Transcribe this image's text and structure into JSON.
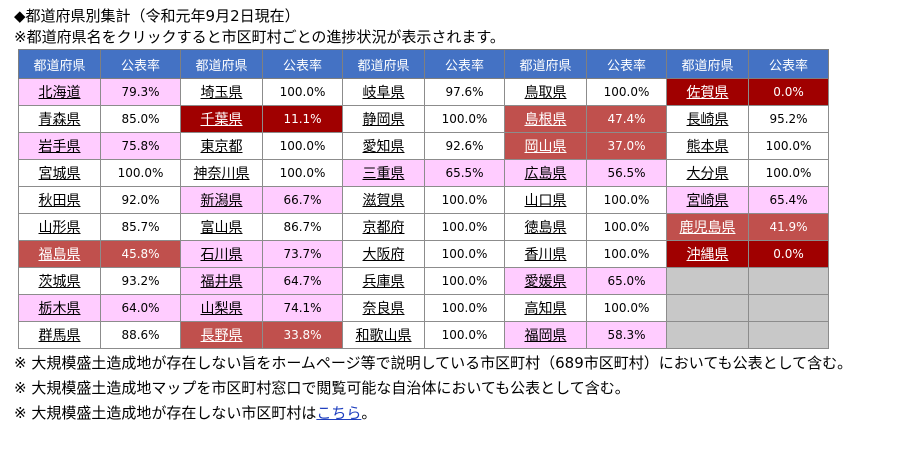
{
  "title": "◆都道府県別集計（令和元年9月2日現在）",
  "note_top": "※都道府県名をクリックすると市区町村ごとの進捗状況が表示されます。",
  "headers": [
    "都道府県",
    "公表率",
    "都道府県",
    "公表率",
    "都道府県",
    "公表率",
    "都道府県",
    "公表率",
    "都道府県",
    "公表率"
  ],
  "colors": {
    "white": "#ffffff",
    "pink": "#ffccff",
    "salmon": "#c0504d",
    "darkred": "#a00000",
    "empty": "#c8c8c8",
    "header": "#4472c4"
  },
  "rows": [
    [
      [
        "北海道",
        "79.3%",
        "pink"
      ],
      [
        "埼玉県",
        "100.0%",
        "white"
      ],
      [
        "岐阜県",
        "97.6%",
        "white"
      ],
      [
        "鳥取県",
        "100.0%",
        "white"
      ],
      [
        "佐賀県",
        "0.0%",
        "darkred"
      ]
    ],
    [
      [
        "青森県",
        "85.0%",
        "white"
      ],
      [
        "千葉県",
        "11.1%",
        "darkred"
      ],
      [
        "静岡県",
        "100.0%",
        "white"
      ],
      [
        "島根県",
        "47.4%",
        "salmon"
      ],
      [
        "長崎県",
        "95.2%",
        "white"
      ]
    ],
    [
      [
        "岩手県",
        "75.8%",
        "pink"
      ],
      [
        "東京都",
        "100.0%",
        "white"
      ],
      [
        "愛知県",
        "92.6%",
        "white"
      ],
      [
        "岡山県",
        "37.0%",
        "salmon"
      ],
      [
        "熊本県",
        "100.0%",
        "white"
      ]
    ],
    [
      [
        "宮城県",
        "100.0%",
        "white"
      ],
      [
        "神奈川県",
        "100.0%",
        "white"
      ],
      [
        "三重県",
        "65.5%",
        "pink"
      ],
      [
        "広島県",
        "56.5%",
        "pink"
      ],
      [
        "大分県",
        "100.0%",
        "white"
      ]
    ],
    [
      [
        "秋田県",
        "92.0%",
        "white"
      ],
      [
        "新潟県",
        "66.7%",
        "pink"
      ],
      [
        "滋賀県",
        "100.0%",
        "white"
      ],
      [
        "山口県",
        "100.0%",
        "white"
      ],
      [
        "宮崎県",
        "65.4%",
        "pink"
      ]
    ],
    [
      [
        "山形県",
        "85.7%",
        "white"
      ],
      [
        "富山県",
        "86.7%",
        "white"
      ],
      [
        "京都府",
        "100.0%",
        "white"
      ],
      [
        "徳島県",
        "100.0%",
        "white"
      ],
      [
        "鹿児島県",
        "41.9%",
        "salmon"
      ]
    ],
    [
      [
        "福島県",
        "45.8%",
        "salmon"
      ],
      [
        "石川県",
        "73.7%",
        "pink"
      ],
      [
        "大阪府",
        "100.0%",
        "white"
      ],
      [
        "香川県",
        "100.0%",
        "white"
      ],
      [
        "沖縄県",
        "0.0%",
        "darkred"
      ]
    ],
    [
      [
        "茨城県",
        "93.2%",
        "white"
      ],
      [
        "福井県",
        "64.7%",
        "pink"
      ],
      [
        "兵庫県",
        "100.0%",
        "white"
      ],
      [
        "愛媛県",
        "65.0%",
        "pink"
      ],
      [
        "",
        "",
        "empty"
      ]
    ],
    [
      [
        "栃木県",
        "64.0%",
        "pink"
      ],
      [
        "山梨県",
        "74.1%",
        "pink"
      ],
      [
        "奈良県",
        "100.0%",
        "white"
      ],
      [
        "高知県",
        "100.0%",
        "white"
      ],
      [
        "",
        "",
        "empty"
      ]
    ],
    [
      [
        "群馬県",
        "88.6%",
        "white"
      ],
      [
        "長野県",
        "33.8%",
        "salmon"
      ],
      [
        "和歌山県",
        "100.0%",
        "white"
      ],
      [
        "福岡県",
        "58.3%",
        "pink"
      ],
      [
        "",
        "",
        "empty"
      ]
    ]
  ],
  "footnotes": {
    "n1": "※ 大規模盛土造成地が存在しない旨をホームページ等で説明している市区町村（689市区町村）においても公表として含む。",
    "n2": "※ 大規模盛土造成地マップを市区町村窓口で閲覧可能な自治体においても公表として含む。",
    "n3_prefix": "※ 大規模盛土造成地が存在しない市区町村は",
    "n3_link": "こちら",
    "n3_suffix": "。"
  }
}
